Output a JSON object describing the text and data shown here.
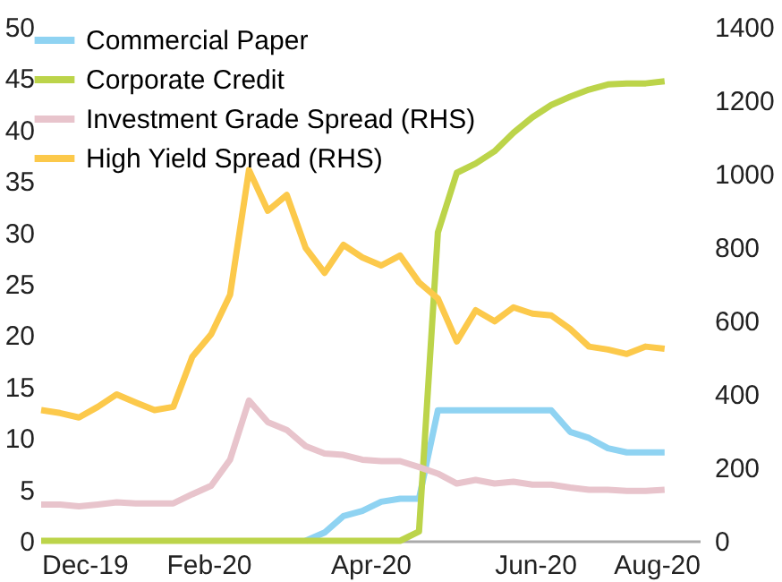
{
  "chart_data": {
    "type": "line",
    "x": [
      "2019-12-01",
      "2019-12-08",
      "2019-12-15",
      "2019-12-22",
      "2019-12-29",
      "2020-01-05",
      "2020-01-12",
      "2020-01-19",
      "2020-01-26",
      "2020-02-02",
      "2020-02-09",
      "2020-02-16",
      "2020-02-23",
      "2020-03-01",
      "2020-03-08",
      "2020-03-15",
      "2020-03-22",
      "2020-03-29",
      "2020-04-05",
      "2020-04-12",
      "2020-04-19",
      "2020-04-26",
      "2020-05-03",
      "2020-05-10",
      "2020-05-17",
      "2020-05-24",
      "2020-05-31",
      "2020-06-07",
      "2020-06-14",
      "2020-06-21",
      "2020-06-28",
      "2020-07-05",
      "2020-07-12",
      "2020-07-19"
    ],
    "series": [
      {
        "name": "Commercial Paper",
        "color": "#8fd3f2",
        "values": [
          null,
          null,
          null,
          null,
          null,
          null,
          null,
          null,
          null,
          null,
          null,
          null,
          null,
          null,
          0,
          0.8,
          2.4,
          2.9,
          3.8,
          4.1,
          4.1,
          12.7,
          12.7,
          12.7,
          12.7,
          12.7,
          12.7,
          12.7,
          10.6,
          10.0,
          9.0,
          8.6,
          8.6,
          8.6
        ]
      },
      {
        "name": "Corporate Credit",
        "color": "#bcd44a",
        "values": [
          0,
          0,
          0,
          0,
          0,
          0,
          0,
          0,
          0,
          0,
          0,
          0,
          0,
          0,
          0,
          0,
          0,
          0,
          0,
          0,
          0.9,
          30,
          35.8,
          36.7,
          37.9,
          39.7,
          41.2,
          42.4,
          43.2,
          43.9,
          44.4,
          44.5,
          44.5,
          44.7
        ]
      },
      {
        "name": "Investment Grade Spread (RHS)",
        "color": "#e8c4cc",
        "axis": "y2",
        "values": [
          99,
          99,
          94,
          99,
          105,
          102,
          102,
          102,
          127,
          150,
          221,
          382,
          323,
          302,
          258,
          238,
          234,
          221,
          217,
          217,
          201,
          183,
          156,
          166,
          156,
          161,
          153,
          153,
          145,
          139,
          139,
          136,
          136,
          139
        ]
      },
      {
        "name": "High Yield Spread (RHS)",
        "color": "#fcc94b",
        "axis": "y2",
        "values": [
          356,
          348,
          336,
          365,
          399,
          377,
          356,
          365,
          501,
          563,
          670,
          1010,
          899,
          942,
          798,
          730,
          806,
          772,
          750,
          777,
          704,
          660,
          543,
          628,
          598,
          636,
          619,
          614,
          577,
          529,
          521,
          509,
          529,
          523
        ]
      }
    ],
    "xlim": [
      "2019-12-01",
      "2020-08-01"
    ],
    "xticks": [
      {
        "value": "2019-12-01",
        "label": "Dec-19"
      },
      {
        "value": "2020-02-01",
        "label": "Feb-20"
      },
      {
        "value": "2020-04-01",
        "label": "Apr-20"
      },
      {
        "value": "2020-06-01",
        "label": "Jun-20"
      },
      {
        "value": "2020-08-01",
        "label": "Aug-20"
      }
    ],
    "ylim": [
      0,
      50
    ],
    "yticks": [
      0,
      5,
      10,
      15,
      20,
      25,
      30,
      35,
      40,
      45,
      50
    ],
    "y2lim": [
      0,
      1400
    ],
    "y2ticks": [
      0,
      200,
      400,
      600,
      800,
      1000,
      1200,
      1400
    ],
    "grid": false,
    "legend": "top left",
    "marker": "none",
    "line_style": "solid"
  }
}
